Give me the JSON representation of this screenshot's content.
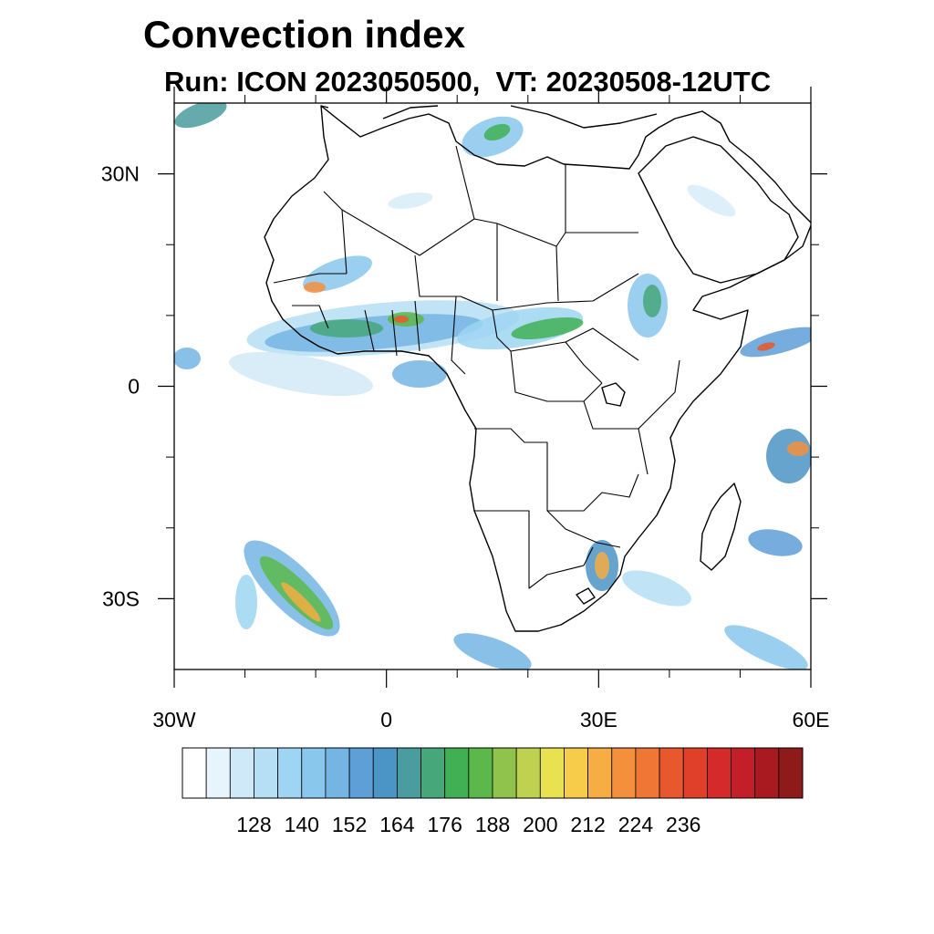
{
  "title": "Convection index",
  "subtitle": "Run: ICON 2023050500,  VT: 20230508-12UTC",
  "map": {
    "extent": {
      "lon_min": -30,
      "lon_max": 60,
      "lat_min": -40,
      "lat_max": 40
    },
    "lat_labels": [
      {
        "lat": 30,
        "text": "30N"
      },
      {
        "lat": 0,
        "text": "0"
      },
      {
        "lat": -30,
        "text": "30S"
      }
    ],
    "lon_labels": [
      {
        "lon": -30,
        "text": "30W"
      },
      {
        "lon": 0,
        "text": "0"
      },
      {
        "lon": 30,
        "text": "30E"
      },
      {
        "lon": 60,
        "text": "60E"
      }
    ],
    "minor_lon_ticks": [
      -20,
      -10,
      10,
      20,
      40,
      50
    ],
    "minor_lat_ticks": [
      20,
      10,
      -10,
      -20
    ]
  },
  "colorbar": {
    "colors": [
      "#ffffff",
      "#e8f4fc",
      "#cfe9f8",
      "#b6def4",
      "#9ed5f2",
      "#89c7ec",
      "#74b5e3",
      "#5e9fd8",
      "#4b94c6",
      "#4a9c9e",
      "#46a77a",
      "#41b055",
      "#5cb84a",
      "#8fc34c",
      "#bfd24f",
      "#e8e250",
      "#f7cc4a",
      "#f6ad43",
      "#f4903c",
      "#f07635",
      "#e8582e",
      "#e0402a",
      "#d42a2a",
      "#c21f28",
      "#a81a20",
      "#8f1a1a"
    ],
    "tick_labels": [
      "128",
      "140",
      "152",
      "164",
      "176",
      "188",
      "200",
      "212",
      "224",
      "236"
    ]
  },
  "colors": {
    "coastline": "#000000",
    "background": "#ffffff"
  }
}
